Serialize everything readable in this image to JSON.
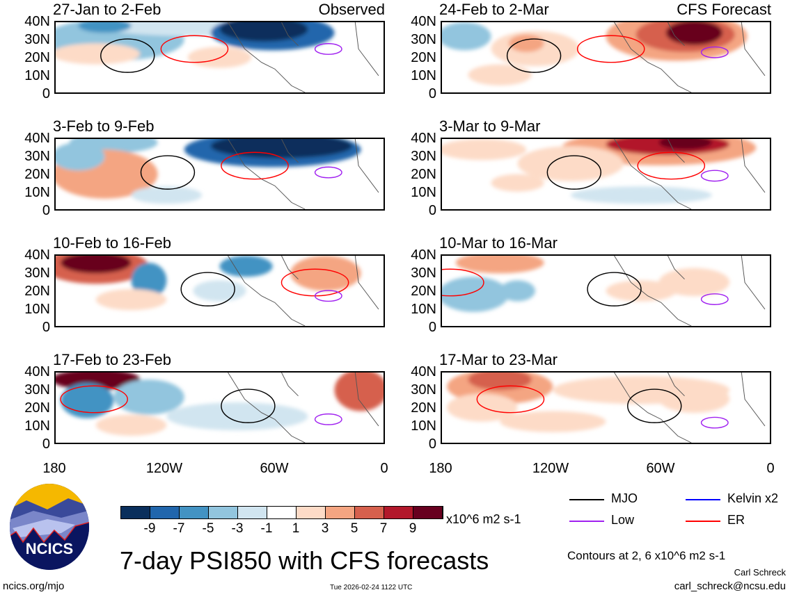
{
  "chart_data": {
    "type": "heatmap",
    "title": "7-day PSI850 with CFS forecasts",
    "variable": "PSI850 anomaly",
    "units": "x10^6 m2 s-1",
    "columns": [
      {
        "label": "Observed"
      },
      {
        "label": "CFS Forecast"
      }
    ],
    "panels": [
      {
        "title": "27-Jan to 2-Feb",
        "kind": "Observed"
      },
      {
        "title": "24-Feb to 2-Mar",
        "kind": "CFS Forecast"
      },
      {
        "title": "3-Feb to 9-Feb",
        "kind": "Observed"
      },
      {
        "title": "3-Mar to 9-Mar",
        "kind": "CFS Forecast"
      },
      {
        "title": "10-Feb to 16-Feb",
        "kind": "Observed"
      },
      {
        "title": "10-Mar to 16-Mar",
        "kind": "CFS Forecast"
      },
      {
        "title": "17-Feb to 23-Feb",
        "kind": "Observed"
      },
      {
        "title": "17-Mar to 23-Mar",
        "kind": "CFS Forecast"
      }
    ],
    "y_ticks": [
      "40N",
      "30N",
      "20N",
      "10N",
      "0"
    ],
    "x_ticks": [
      "180",
      "120W",
      "60W",
      "0"
    ],
    "ylim": [
      0,
      40
    ],
    "xlim": [
      -180,
      0
    ],
    "colorbar": {
      "levels": [
        "-9",
        "-7",
        "-5",
        "-3",
        "-1",
        "1",
        "3",
        "5",
        "7",
        "9"
      ],
      "colors": [
        "#0a2f5c",
        "#2166ac",
        "#4393c3",
        "#92c5de",
        "#d1e5f0",
        "#ffffff",
        "#fddbc7",
        "#f4a582",
        "#d6604d",
        "#b2182b",
        "#67001f"
      ],
      "units": "x10^6 m2 s-1"
    },
    "contours_note": "Contours at 2, 6 x10^6 m2 s-1",
    "legend": [
      {
        "label": "MJO",
        "color": "#000000"
      },
      {
        "label": "Kelvin x2",
        "color": "#0000ff"
      },
      {
        "label": "Low",
        "color": "#a020f0"
      },
      {
        "label": "ER",
        "color": "#ff0000"
      }
    ]
  },
  "footer": {
    "logo_text": "NCICS",
    "url": "ncics.org/mjo",
    "timestamp": "Tue 2026-02-24 1122 UTC",
    "author": "Carl Schreck",
    "email": "carl_schreck@ncsu.edu"
  }
}
